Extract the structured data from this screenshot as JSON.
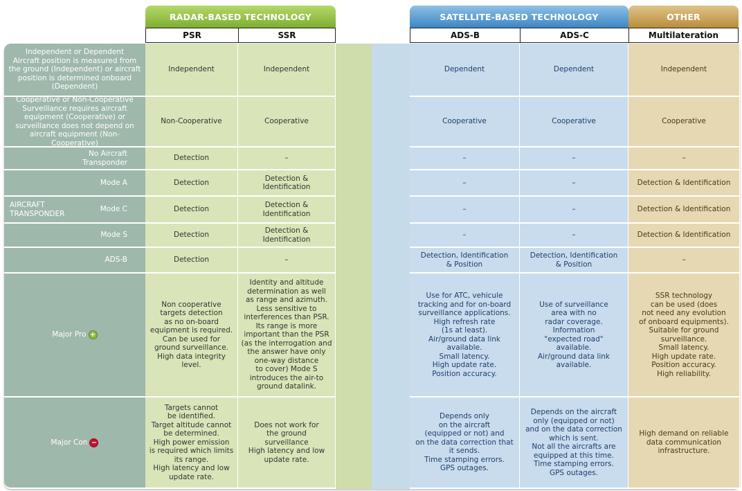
{
  "groups": {
    "radar": "RADAR-BASED TECHNOLOGY",
    "satellite": "SATELLITE-BASED TECHNOLOGY",
    "other": "OTHER"
  },
  "columns": [
    "PSR",
    "SSR",
    "ADS-B",
    "ADS-C",
    "Multilateration"
  ],
  "aircraft_transponder_label": "AIRCRAFT\nTRANSPONDER",
  "rows": [
    {
      "label": "Independent or Dependent\nAircraft position is measured from\nthe ground (Independent) or aircraft\nposition is determined onboard\n(Dependent)",
      "cells": [
        "Independent",
        "Independent",
        "Dependent",
        "Dependent",
        "Independent"
      ]
    },
    {
      "label": "Cooperative or Non-Cooperative\nSurveillance requires aircraft\nequipment (Cooperative) or\nsurveillance does not depend on\naircraft equipment (Non-Cooperative)",
      "cells": [
        "Non-Cooperative",
        "Cooperative",
        "Cooperative",
        "Cooperative",
        "Cooperative"
      ]
    },
    {
      "label": "No Aircraft\nTransponder",
      "cells": [
        "Detection",
        "–",
        "–",
        "–",
        "–"
      ]
    },
    {
      "label": "Mode A",
      "cells": [
        "Detection",
        "Detection &\nIdentification",
        "–",
        "–",
        "Detection & Identification"
      ]
    },
    {
      "label": "Mode C",
      "cells": [
        "Detection",
        "Detection &\nIdentification",
        "–",
        "–",
        "Detection & Identification"
      ]
    },
    {
      "label": "Mode S",
      "cells": [
        "Detection",
        "Detection &\nIdentification",
        "–",
        "–",
        "Detection & Identification"
      ]
    },
    {
      "label": "ADS-B",
      "cells": [
        "Detection",
        "–",
        "Detection, Identification\n& Position",
        "Detection, Identification\n& Position",
        "–"
      ]
    },
    {
      "label": "Major Pro",
      "cells": [
        "Non cooperative\ntargets detection\nas no on-board\nequipment is required.\nCan be used for\nground surveillance.\nHigh data integrity\nlevel.",
        "Identity and altitude\ndetermination as well\nas range and azimuth.\nLess sensitive to\ninterferences than PSR.\nIts range is more\nimportant than the PSR\n(as the interrogation and\nthe answer have only\none-way distance\nto cover) Mode S\nintroduces the air-to\nground datalink.",
        "Use for ATC, vehicule\ntracking and for on-board\nsurveillance applications.\nHigh refresh rate\n(1s at least).\nAir/ground data link\navailable.\nSmall latency.\nHigh update rate.\nPosition accuracy.",
        "Use of surveillance\narea with no\nradar coverage.\nInformation\n\"expected road\"\navailable.\nAir/ground data link\navailable.",
        "SSR technology\ncan be used (does\nnot need any evolution\nof onboard equipments).\nSuitable for ground\nsurveillance.\nSmall latency.\nHigh update rate.\nPosition accuracy.\nHigh reliability."
      ]
    },
    {
      "label": "Major Con",
      "cells": [
        "Targets cannot\nbe identified.\nTarget altitude cannot\nbe determined.\nHigh power emission\nis required which limits\nits range.\nHigh latency and low\nupdate rate.",
        "Does not work for\nthe ground\nsurveillance\nHigh latency and low\nupdate rate.",
        "Depends only\non the aircraft\n(equipped or not) and\non the data correction that\nit sends.\nTime stamping errors.\nGPS outages.",
        "Depends on the aircraft\nonly (equipped or not)\nand on the data correction\nwhich is sent.\nNot all the aircrafts are\nequipped at this time.\nTime stamping errors.\nGPS outages.",
        "High demand on reliable\ndata communication\ninfrastructure."
      ]
    }
  ],
  "colors": {
    "radar": "#8bb83c",
    "satellite": "#4a90cc",
    "other": "#c49a45",
    "label_bg": "#9fb8ac",
    "pro_icon": "#8ab83a",
    "con_icon": "#c8102e"
  },
  "icons": {
    "pro": "plus-circle-icon",
    "con": "minus-circle-icon"
  }
}
